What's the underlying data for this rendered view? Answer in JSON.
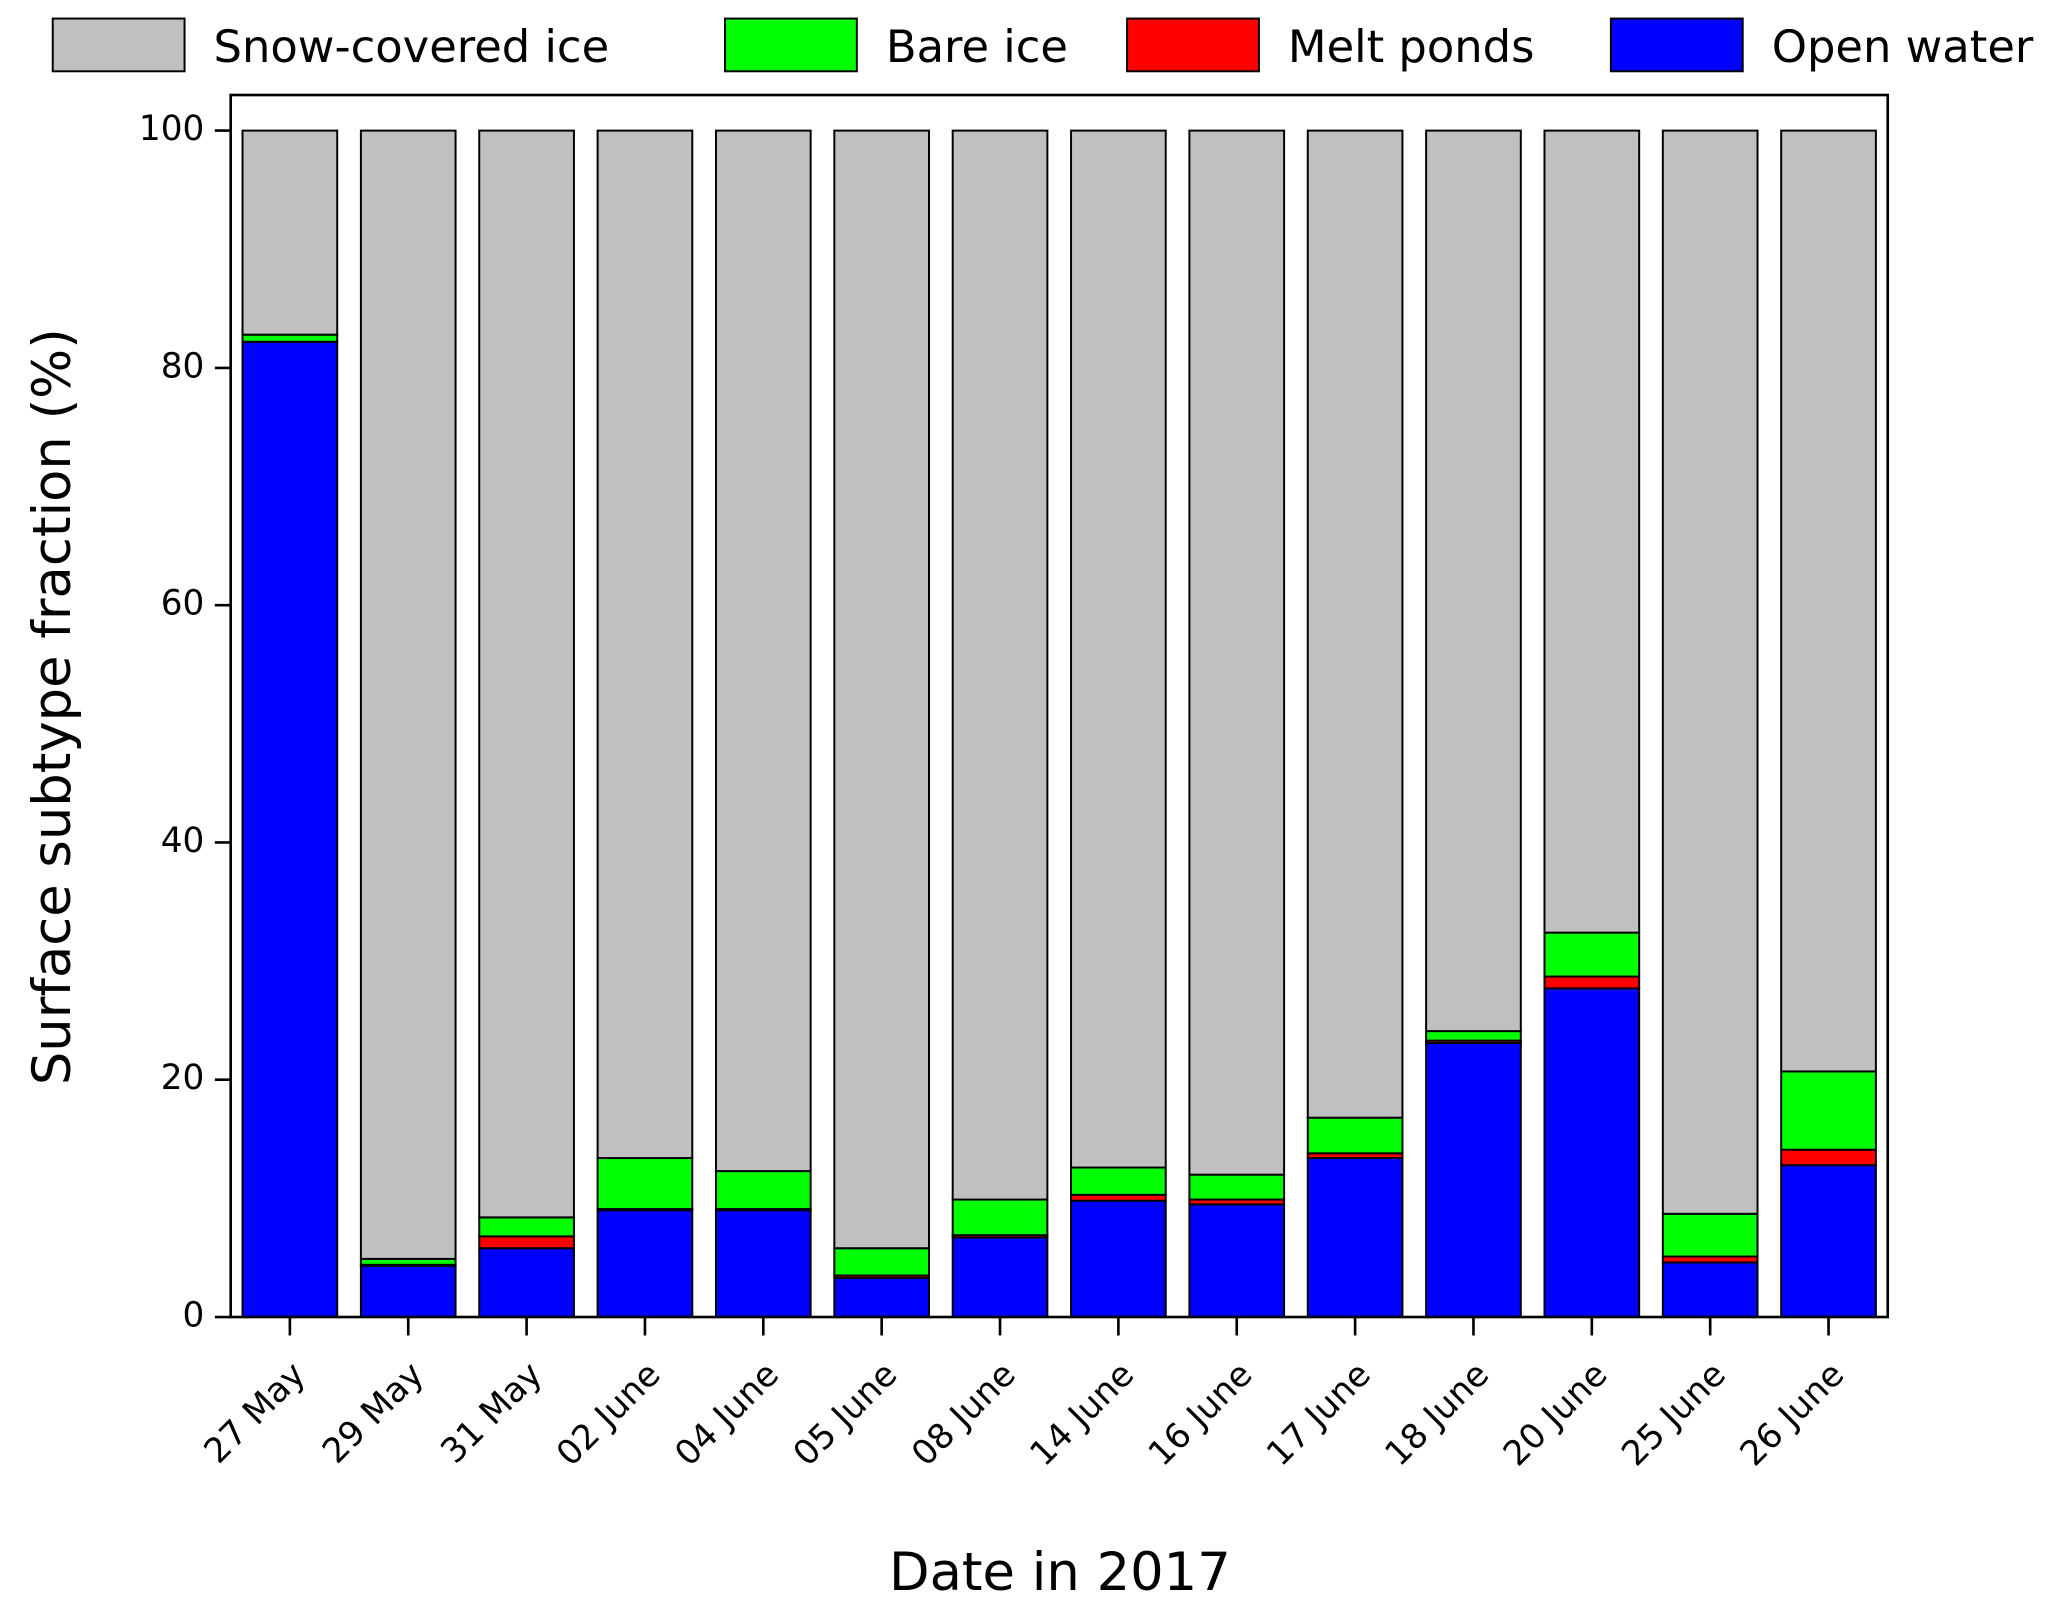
{
  "chart_data": {
    "type": "stacked_bar",
    "xlabel": "Date in 2017",
    "ylabel": "Surface subtype fraction (%)",
    "categories": [
      "27 May",
      "29 May",
      "31 May",
      "02 June",
      "04 June",
      "05 June",
      "08 June",
      "14 June",
      "16 June",
      "17 June",
      "18 June",
      "20 June",
      "25 June",
      "26 June"
    ],
    "series": [
      {
        "name": "Snow-covered ice",
        "color": "#c0c0c0",
        "values": [
          17.2,
          95.1,
          91.6,
          86.6,
          87.7,
          94.2,
          90.1,
          87.4,
          88.0,
          83.2,
          75.9,
          67.6,
          91.3,
          79.3
        ]
      },
      {
        "name": "Bare ice",
        "color": "#00ff00",
        "values": [
          0.6,
          0.5,
          1.6,
          4.3,
          3.2,
          2.3,
          3.0,
          2.3,
          2.1,
          3.0,
          0.8,
          3.7,
          3.6,
          6.6
        ]
      },
      {
        "name": "Melt ponds",
        "color": "#ff0000",
        "values": [
          0.0,
          0.1,
          1.0,
          0.1,
          0.1,
          0.2,
          0.2,
          0.5,
          0.4,
          0.4,
          0.2,
          1.0,
          0.5,
          1.3
        ]
      },
      {
        "name": "Open water",
        "color": "#0000ff",
        "values": [
          82.2,
          4.3,
          5.8,
          9.0,
          9.0,
          3.3,
          6.7,
          9.8,
          9.5,
          13.4,
          23.1,
          27.7,
          4.6,
          12.8
        ]
      }
    ],
    "ylim": [
      0,
      103
    ],
    "yticks": [
      0,
      20,
      40,
      60,
      80,
      100
    ]
  }
}
